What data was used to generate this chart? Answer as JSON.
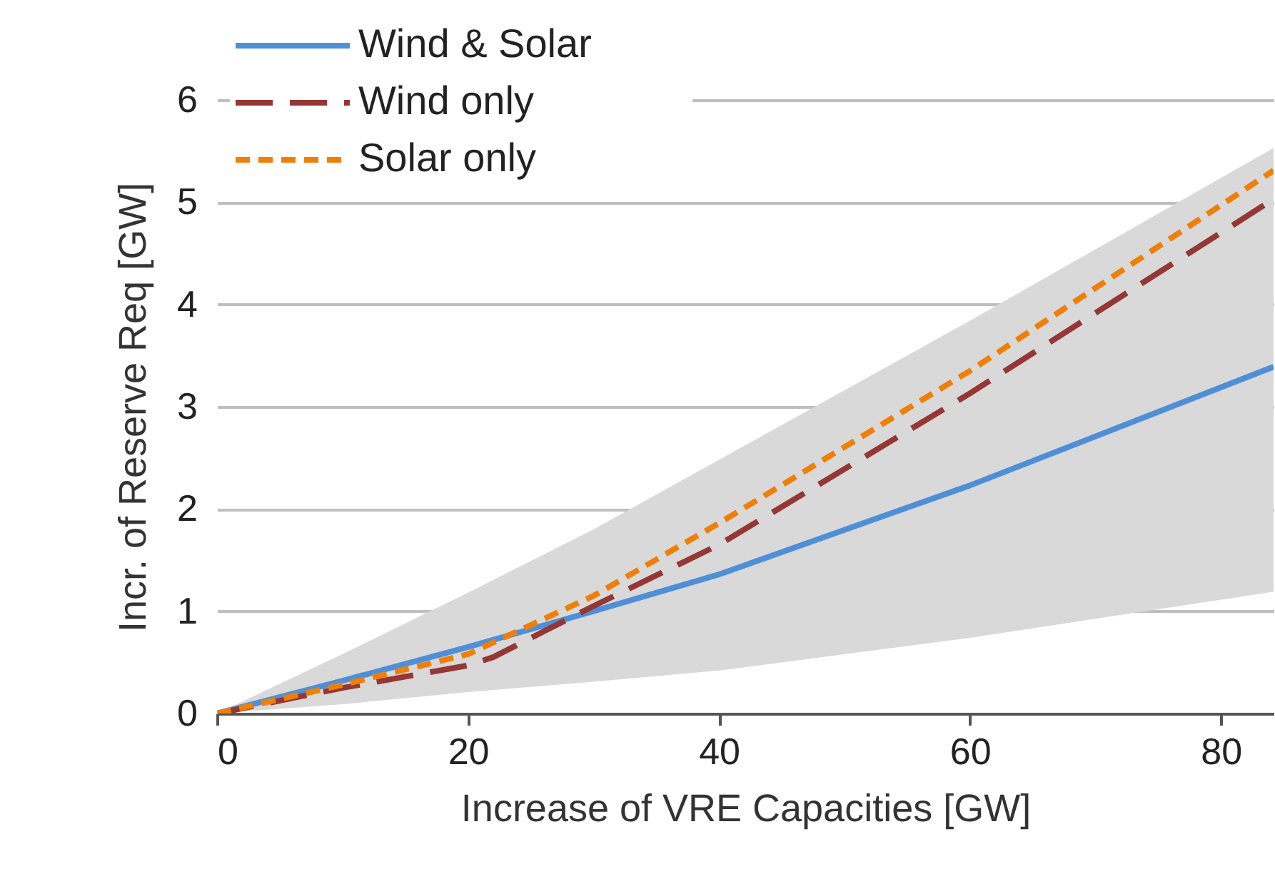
{
  "chart_data": {
    "type": "line",
    "xlabel": "Increase of VRE Capacities [GW]",
    "ylabel": "Incr. of Reserve Req [GW]",
    "xlim": [
      0,
      84.2
    ],
    "ylim": [
      0,
      6
    ],
    "xticks": [
      0,
      20,
      40,
      60,
      80
    ],
    "yticks": [
      0,
      1,
      2,
      3,
      4,
      5,
      6
    ],
    "grid": "y",
    "legend": "top left",
    "marker": "none",
    "series": [
      {
        "name": "Wind & Solar",
        "color": "#4f8fd8",
        "line_style": "solid",
        "x": [
          0,
          10,
          20,
          30,
          40,
          60,
          84.2
        ],
        "values": [
          0,
          0.32,
          0.65,
          1.0,
          1.36,
          2.23,
          3.39
        ],
        "lower": [
          0,
          0.09,
          0.21,
          0.31,
          0.42,
          0.74,
          1.19
        ],
        "upper": [
          0,
          0.58,
          1.18,
          1.8,
          2.48,
          3.84,
          5.53
        ]
      },
      {
        "name": "Wind only",
        "color": "#953735",
        "line_style": "dashed",
        "x": [
          0,
          10,
          20,
          22,
          30,
          40,
          60,
          84.2
        ],
        "values": [
          0,
          0.25,
          0.47,
          0.55,
          1.05,
          1.65,
          3.13,
          5.03
        ]
      },
      {
        "name": "Solar only",
        "color": "#f07f09",
        "line_style": "dotted",
        "x": [
          0,
          10,
          20,
          30,
          40,
          60,
          84.2
        ],
        "values": [
          0,
          0.28,
          0.58,
          1.15,
          1.86,
          3.35,
          5.31
        ]
      }
    ]
  }
}
